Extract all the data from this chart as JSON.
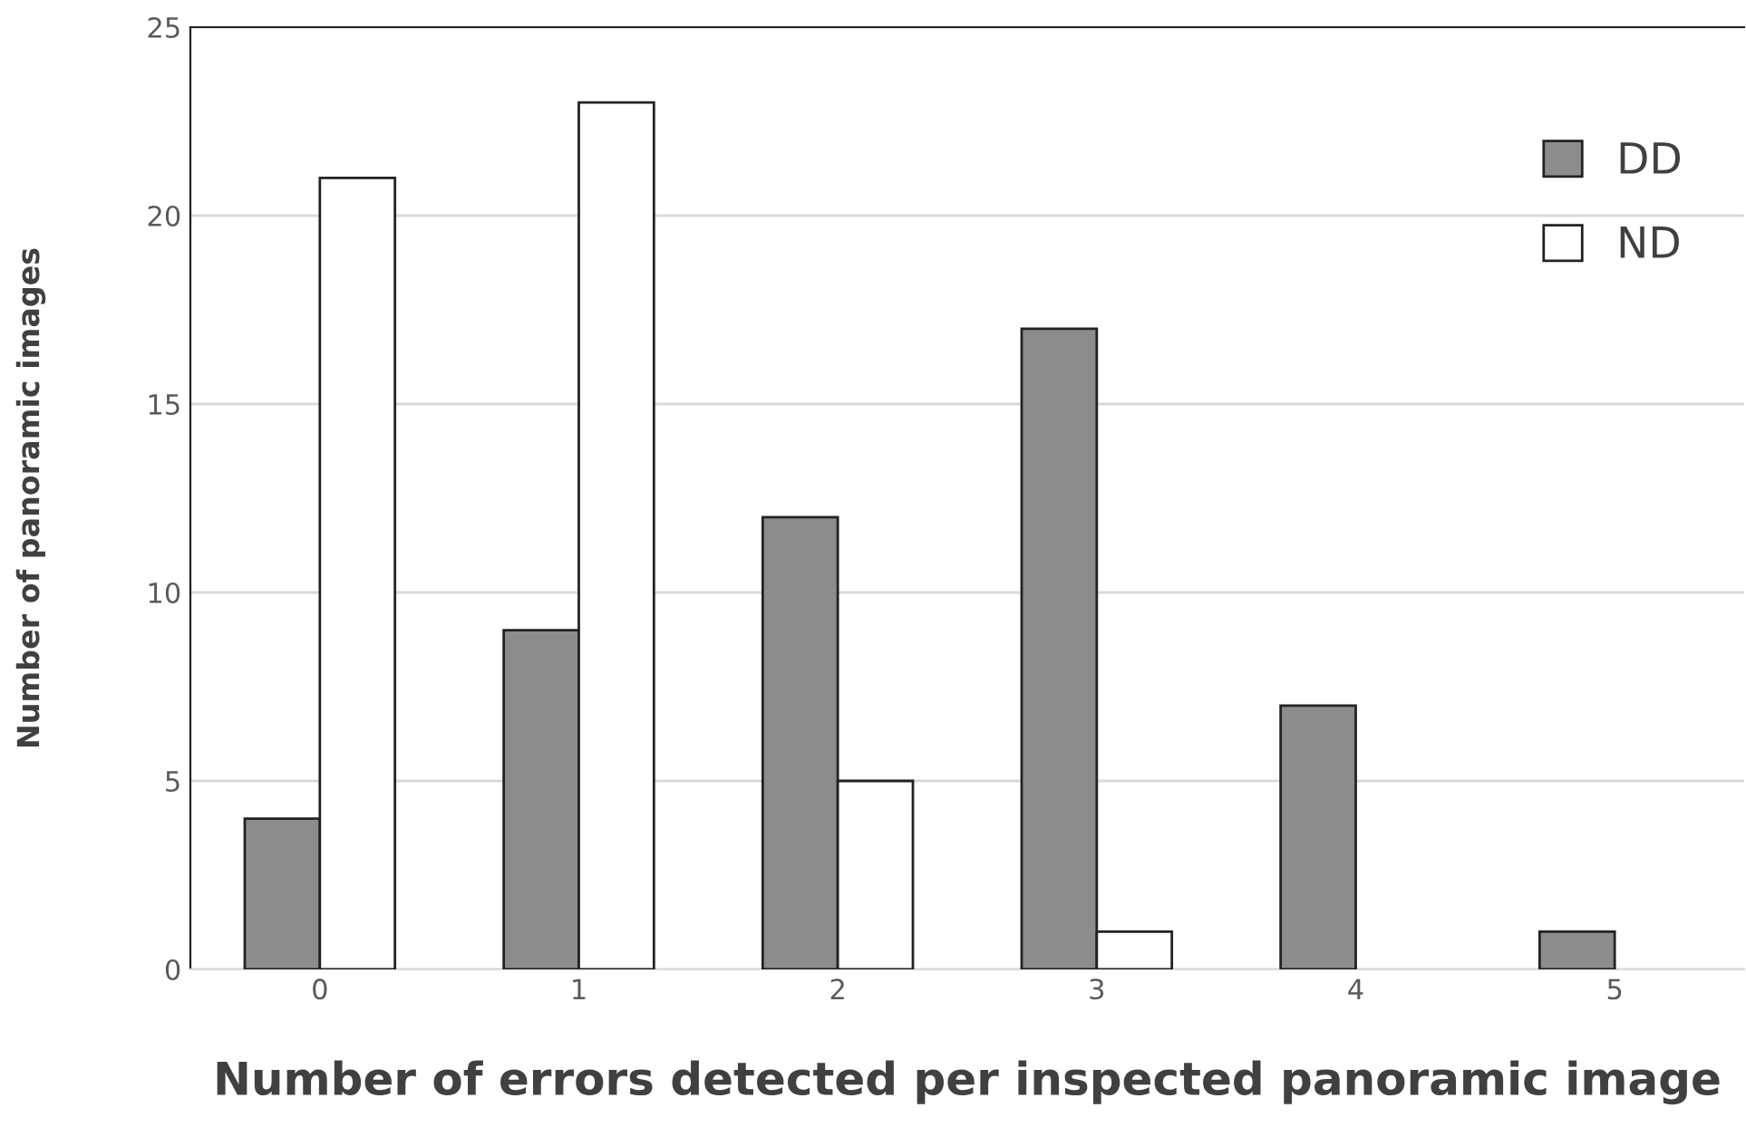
{
  "chart_data": {
    "type": "bar",
    "xlabel": "Number of errors detected per inspected panoramic image",
    "ylabel": "Number of panoramic images",
    "categories": [
      "0",
      "1",
      "2",
      "3",
      "4",
      "5"
    ],
    "series": [
      {
        "name": "DD",
        "color": "#8c8c8c",
        "values": [
          4,
          9,
          12,
          17,
          7,
          1
        ]
      },
      {
        "name": "ND",
        "color": "#ffffff",
        "values": [
          21,
          23,
          5,
          1,
          0,
          0
        ]
      }
    ],
    "ylim": [
      0,
      25
    ],
    "yticks": [
      0,
      5,
      10,
      15,
      20,
      25
    ],
    "grid": "y",
    "legend": "top right"
  }
}
